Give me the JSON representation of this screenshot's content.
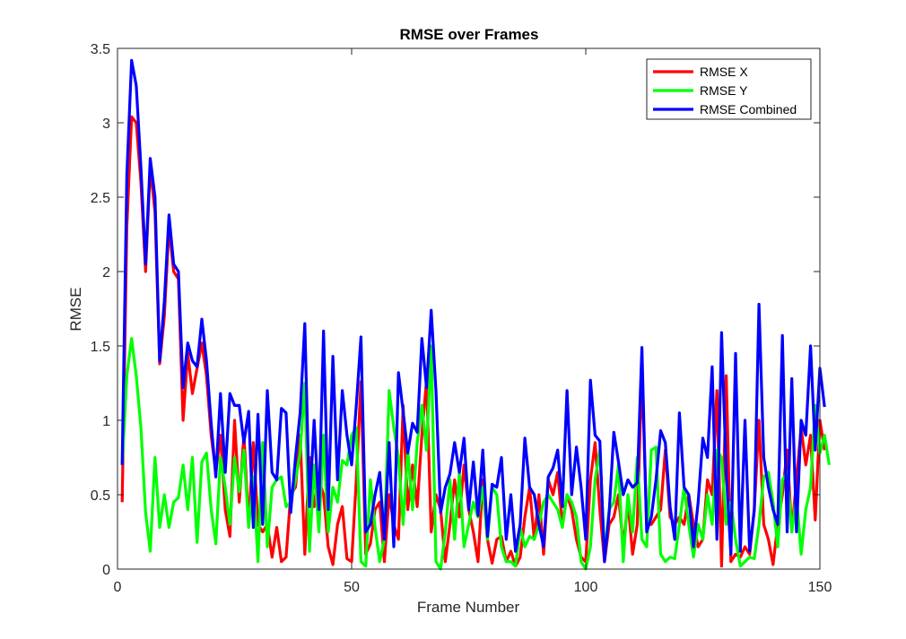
{
  "chart_data": {
    "type": "line",
    "title": "RMSE over Frames",
    "xlabel": "Frame Number",
    "ylabel": "RMSE",
    "xlim": [
      0,
      150
    ],
    "ylim": [
      0,
      3.5
    ],
    "xticks": [
      0,
      50,
      100,
      150
    ],
    "yticks": [
      0,
      0.5,
      1,
      1.5,
      2,
      2.5,
      3,
      3.5
    ],
    "ytick_labels": [
      "0",
      "0.5",
      "1",
      "1.5",
      "2",
      "2.5",
      "3",
      "3.5"
    ],
    "grid": false,
    "legend_position": "top-right",
    "series": [
      {
        "name": "RMSE X",
        "color": "#ff0000",
        "values": [
          0.45,
          2.3,
          3.04,
          3.0,
          2.6,
          2.0,
          2.7,
          2.4,
          1.38,
          1.7,
          2.3,
          2.0,
          1.95,
          1.0,
          1.45,
          1.18,
          1.35,
          1.52,
          1.3,
          0.9,
          0.65,
          0.9,
          0.4,
          0.22,
          1.0,
          0.45,
          0.9,
          0.3,
          0.85,
          0.3,
          0.25,
          0.3,
          0.08,
          0.28,
          0.05,
          0.08,
          0.5,
          0.55,
          0.9,
          0.1,
          0.75,
          0.42,
          0.6,
          0.5,
          0.15,
          0.03,
          0.3,
          0.42,
          0.07,
          0.05,
          0.6,
          1.26,
          0.1,
          0.17,
          0.4,
          0.45,
          0.05,
          0.5,
          0.3,
          0.2,
          1.1,
          0.4,
          0.7,
          0.42,
          0.9,
          1.27,
          0.25,
          0.5,
          0.4,
          0.05,
          0.3,
          0.6,
          0.35,
          0.7,
          0.4,
          0.25,
          0.05,
          0.6,
          0.2,
          0.04,
          0.2,
          0.22,
          0.05,
          0.12,
          0.02,
          0.08,
          0.35,
          0.55,
          0.2,
          0.5,
          0.1,
          0.6,
          0.5,
          0.65,
          0.3,
          0.5,
          0.4,
          0.2,
          0.08,
          0.05,
          0.6,
          0.85,
          0.4,
          0.05,
          0.3,
          0.35,
          0.5,
          0.15,
          0.45,
          0.1,
          0.3,
          1.35,
          0.3,
          0.3,
          0.35,
          0.4,
          0.8,
          0.35,
          0.3,
          0.35,
          0.3,
          0.5,
          0.3,
          0.15,
          0.2,
          0.6,
          0.5,
          1.2,
          0.02,
          1.3,
          0.05,
          0.1,
          0.08,
          0.15,
          0.1,
          0.4,
          1.0,
          0.3,
          0.2,
          0.03,
          0.3,
          0.5,
          0.8,
          0.25,
          0.6,
          0.95,
          0.7,
          0.9,
          0.33,
          1.0,
          0.8
        ]
      },
      {
        "name": "RMSE Y",
        "color": "#00ff00",
        "values": [
          0.7,
          1.3,
          1.55,
          1.3,
          0.95,
          0.38,
          0.12,
          0.75,
          0.28,
          0.5,
          0.28,
          0.45,
          0.48,
          0.7,
          0.4,
          0.75,
          0.18,
          0.72,
          0.78,
          0.4,
          0.17,
          0.75,
          0.55,
          0.3,
          0.75,
          0.52,
          0.8,
          0.28,
          0.62,
          0.05,
          0.85,
          0.15,
          0.55,
          0.6,
          0.62,
          0.42,
          0.45,
          0.6,
          0.78,
          1.25,
          0.12,
          0.7,
          0.25,
          0.9,
          0.25,
          0.55,
          0.45,
          0.73,
          0.7,
          0.9,
          0.95,
          0.05,
          0.02,
          0.6,
          0.28,
          0.05,
          0.2,
          1.2,
          0.95,
          0.75,
          0.3,
          0.8,
          0.4,
          0.85,
          1.1,
          0.8,
          1.5,
          0.05,
          0.0,
          0.25,
          0.6,
          0.2,
          0.65,
          0.15,
          0.3,
          0.45,
          0.35,
          0.55,
          0.2,
          0.55,
          0.5,
          0.15,
          0.05,
          0.05,
          0.02,
          0.28,
          0.15,
          0.22,
          0.2,
          0.3,
          0.45,
          0.5,
          0.45,
          0.4,
          0.28,
          0.5,
          0.45,
          0.35,
          0.05,
          0.0,
          0.15,
          0.6,
          0.8,
          0.1,
          0.4,
          0.45,
          0.7,
          0.05,
          0.5,
          0.25,
          0.75,
          0.2,
          0.15,
          0.8,
          0.82,
          0.1,
          0.05,
          0.08,
          0.07,
          0.3,
          0.55,
          0.3,
          0.08,
          0.3,
          0.2,
          0.5,
          0.3,
          0.8,
          0.75,
          0.3,
          0.45,
          0.2,
          0.02,
          0.05,
          0.08,
          0.07,
          0.3,
          0.62,
          0.65,
          0.45,
          0.15,
          0.6,
          0.65,
          0.25,
          0.5,
          0.1,
          0.4,
          0.55,
          1.1,
          0.78,
          0.9,
          0.7
        ]
      },
      {
        "name": "RMSE Combined",
        "color": "#0000ff",
        "values": [
          0.7,
          2.65,
          3.42,
          3.25,
          2.7,
          2.05,
          2.76,
          2.5,
          1.4,
          1.8,
          2.38,
          2.05,
          2.0,
          1.22,
          1.52,
          1.4,
          1.36,
          1.68,
          1.4,
          0.98,
          0.62,
          1.18,
          0.65,
          1.18,
          1.1,
          1.1,
          0.85,
          1.06,
          0.28,
          1.04,
          0.3,
          1.2,
          0.65,
          0.6,
          1.08,
          1.05,
          0.38,
          0.75,
          1.05,
          1.65,
          0.42,
          1.0,
          0.4,
          1.6,
          0.4,
          1.43,
          0.6,
          1.2,
          0.9,
          0.7,
          1.1,
          1.56,
          0.25,
          0.3,
          0.5,
          0.65,
          0.2,
          0.85,
          0.15,
          1.32,
          1.06,
          0.78,
          0.98,
          0.92,
          1.55,
          1.22,
          1.74,
          1.2,
          0.38,
          0.55,
          0.64,
          0.85,
          0.65,
          0.88,
          0.4,
          0.72,
          0.36,
          0.8,
          0.22,
          0.57,
          0.55,
          0.75,
          0.2,
          0.5,
          0.12,
          0.3,
          0.88,
          0.55,
          0.5,
          0.3,
          0.15,
          0.62,
          0.68,
          0.8,
          0.42,
          1.2,
          0.5,
          0.82,
          0.55,
          0.2,
          1.27,
          0.9,
          0.86,
          0.05,
          0.38,
          0.92,
          0.72,
          0.5,
          0.6,
          0.55,
          0.58,
          1.49,
          0.25,
          0.35,
          0.6,
          0.93,
          0.85,
          0.42,
          0.2,
          1.05,
          0.55,
          0.5,
          0.15,
          0.45,
          0.88,
          0.75,
          1.36,
          0.2,
          1.59,
          0.65,
          0.1,
          1.45,
          0.12,
          1.0,
          0.12,
          0.4,
          1.78,
          0.75,
          0.55,
          0.4,
          0.3,
          1.57,
          0.25,
          1.28,
          0.25,
          1.0,
          0.9,
          1.5,
          0.8,
          1.35,
          1.09
        ]
      }
    ]
  }
}
